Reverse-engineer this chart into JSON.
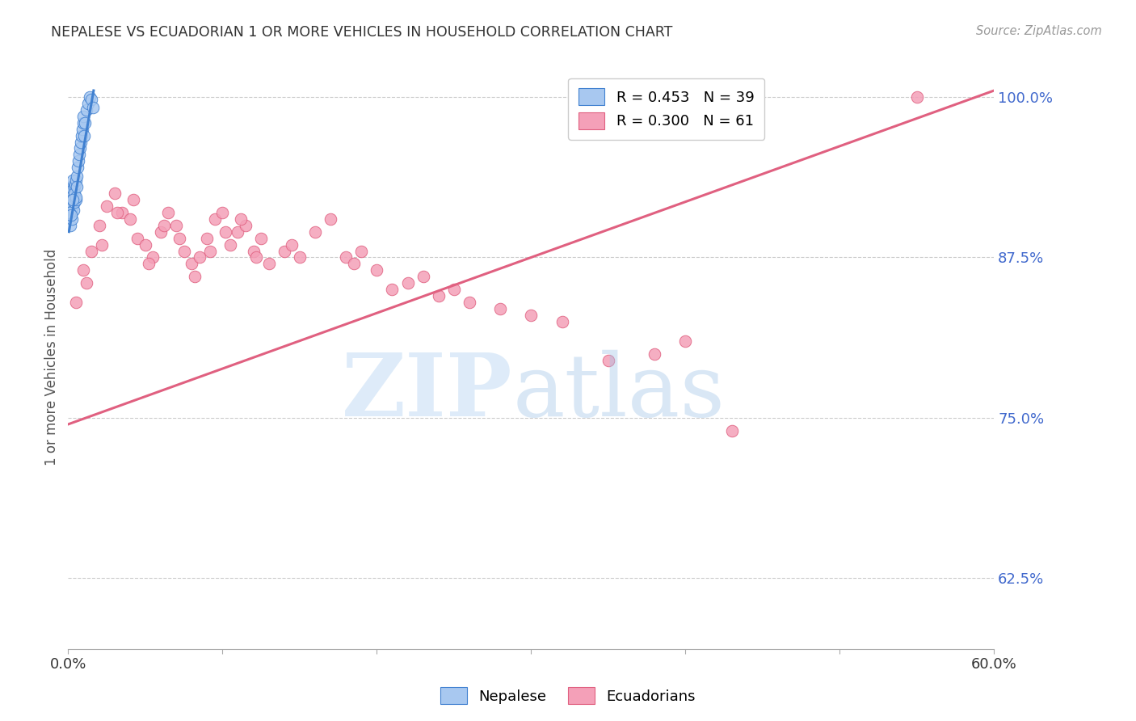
{
  "title": "NEPALESE VS ECUADORIAN 1 OR MORE VEHICLES IN HOUSEHOLD CORRELATION CHART",
  "source": "Source: ZipAtlas.com",
  "ylabel": "1 or more Vehicles in Household",
  "xlim": [
    0.0,
    60.0
  ],
  "ylim": [
    57.0,
    102.5
  ],
  "yticks": [
    62.5,
    75.0,
    87.5,
    100.0
  ],
  "ytick_labels": [
    "62.5%",
    "75.0%",
    "87.5%",
    "100.0%"
  ],
  "xticks": [
    0.0,
    10.0,
    20.0,
    30.0,
    40.0,
    50.0,
    60.0
  ],
  "xtick_labels": [
    "0.0%",
    "",
    "",
    "",
    "",
    "",
    "60.0%"
  ],
  "nepalese_R": 0.453,
  "nepalese_N": 39,
  "ecuadorian_R": 0.3,
  "ecuadorian_N": 61,
  "nepalese_color": "#a8c8f0",
  "ecuadorian_color": "#f4a0b8",
  "nepalese_line_color": "#4080d0",
  "ecuadorian_line_color": "#e06080",
  "background_color": "#ffffff",
  "nepalese_x": [
    0.08,
    0.12,
    0.15,
    0.18,
    0.2,
    0.22,
    0.25,
    0.28,
    0.3,
    0.32,
    0.35,
    0.38,
    0.4,
    0.42,
    0.45,
    0.48,
    0.5,
    0.52,
    0.55,
    0.58,
    0.6,
    0.65,
    0.7,
    0.75,
    0.8,
    0.85,
    0.9,
    0.95,
    1.0,
    1.05,
    1.1,
    1.2,
    1.3,
    1.4,
    1.5,
    0.1,
    0.2,
    0.3,
    1.6
  ],
  "nepalese_y": [
    91.5,
    90.0,
    92.5,
    93.0,
    91.0,
    92.0,
    90.5,
    91.5,
    93.5,
    92.8,
    91.2,
    93.0,
    92.5,
    91.8,
    93.2,
    92.0,
    93.5,
    92.2,
    93.8,
    93.0,
    94.5,
    95.0,
    95.5,
    96.0,
    96.5,
    97.0,
    97.5,
    98.0,
    98.5,
    97.0,
    98.0,
    99.0,
    99.5,
    100.0,
    99.8,
    91.0,
    90.8,
    92.0,
    99.2
  ],
  "ecuadorian_x": [
    0.5,
    1.0,
    1.5,
    2.0,
    2.5,
    3.0,
    3.5,
    4.0,
    4.5,
    5.0,
    5.5,
    6.0,
    6.5,
    7.0,
    7.5,
    8.0,
    8.5,
    9.0,
    9.5,
    10.0,
    10.5,
    11.0,
    11.5,
    12.0,
    12.5,
    13.0,
    14.0,
    15.0,
    16.0,
    17.0,
    18.0,
    19.0,
    20.0,
    21.0,
    22.0,
    23.0,
    24.0,
    25.0,
    26.0,
    28.0,
    30.0,
    32.0,
    35.0,
    38.0,
    40.0,
    43.0,
    55.0,
    1.2,
    2.2,
    3.2,
    4.2,
    5.2,
    6.2,
    7.2,
    8.2,
    9.2,
    10.2,
    11.2,
    12.2,
    14.5,
    18.5
  ],
  "ecuadorian_y": [
    84.0,
    86.5,
    88.0,
    90.0,
    91.5,
    92.5,
    91.0,
    90.5,
    89.0,
    88.5,
    87.5,
    89.5,
    91.0,
    90.0,
    88.0,
    87.0,
    87.5,
    89.0,
    90.5,
    91.0,
    88.5,
    89.5,
    90.0,
    88.0,
    89.0,
    87.0,
    88.0,
    87.5,
    89.5,
    90.5,
    87.5,
    88.0,
    86.5,
    85.0,
    85.5,
    86.0,
    84.5,
    85.0,
    84.0,
    83.5,
    83.0,
    82.5,
    79.5,
    80.0,
    81.0,
    74.0,
    100.0,
    85.5,
    88.5,
    91.0,
    92.0,
    87.0,
    90.0,
    89.0,
    86.0,
    88.0,
    89.5,
    90.5,
    87.5,
    88.5,
    87.0
  ],
  "ecuadorian_line_x0": 0.0,
  "ecuadorian_line_y0": 74.5,
  "ecuadorian_line_x1": 60.0,
  "ecuadorian_line_y1": 100.5,
  "nepalese_line_x0": 0.05,
  "nepalese_line_y0": 89.5,
  "nepalese_line_x1": 1.65,
  "nepalese_line_y1": 100.5
}
